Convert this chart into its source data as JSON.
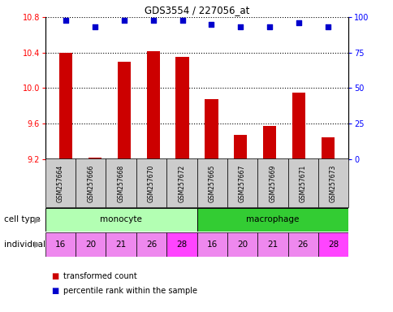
{
  "title": "GDS3554 / 227056_at",
  "samples": [
    "GSM257664",
    "GSM257666",
    "GSM257668",
    "GSM257670",
    "GSM257672",
    "GSM257665",
    "GSM257667",
    "GSM257669",
    "GSM257671",
    "GSM257673"
  ],
  "transformed_count": [
    10.4,
    9.22,
    10.3,
    10.42,
    10.35,
    9.88,
    9.47,
    9.57,
    9.95,
    9.45
  ],
  "percentile_rank": [
    98,
    93,
    98,
    98,
    98,
    95,
    93,
    93,
    96,
    93
  ],
  "cell_types": [
    "monocyte",
    "monocyte",
    "monocyte",
    "monocyte",
    "monocyte",
    "macrophage",
    "macrophage",
    "macrophage",
    "macrophage",
    "macrophage"
  ],
  "individuals": [
    "16",
    "20",
    "21",
    "26",
    "28",
    "16",
    "20",
    "21",
    "26",
    "28"
  ],
  "ylim_left": [
    9.2,
    10.8
  ],
  "ylim_right": [
    0,
    100
  ],
  "yticks_left": [
    9.2,
    9.6,
    10.0,
    10.4,
    10.8
  ],
  "yticks_right": [
    0,
    25,
    50,
    75,
    100
  ],
  "bar_color": "#cc0000",
  "dot_color": "#0000cc",
  "monocyte_color": "#b3ffb3",
  "macrophage_color": "#33cc33",
  "individual_colors": [
    "#ee88ee",
    "#ee88ee",
    "#ee88ee",
    "#ee88ee",
    "#ff44ff",
    "#ee88ee",
    "#ee88ee",
    "#ee88ee",
    "#ee88ee",
    "#ff44ff"
  ],
  "sample_bg_color": "#cccccc",
  "legend_bar_label": "transformed count",
  "legend_dot_label": "percentile rank within the sample",
  "cell_type_label": "cell type",
  "individual_label": "individual",
  "fig_bg": "#ffffff"
}
